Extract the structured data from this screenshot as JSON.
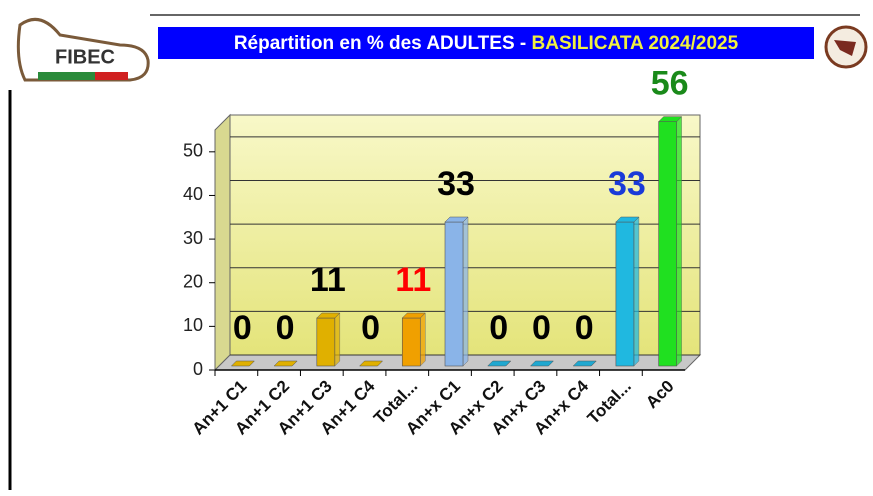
{
  "chart_data": {
    "type": "bar",
    "title": {
      "prefix": "Répartition en % des ADULTES -",
      "highlight": "BASILICATA 2024/2025"
    },
    "logo": "FIBEC",
    "categories": [
      "An+1 C1",
      "An+1 C2",
      "An+1 C3",
      "An+1 C4",
      "Total...",
      "An+x C1",
      "An+x C2",
      "An+x C3",
      "An+x C4",
      "Total...",
      "Ac0"
    ],
    "values": [
      0,
      0,
      11,
      0,
      11,
      33,
      0,
      0,
      0,
      33,
      56
    ],
    "colors": [
      "#e0b000",
      "#e0b000",
      "#e0b000",
      "#e0b000",
      "#f0a000",
      "#8ab4e8",
      "#20a8d0",
      "#20a8d0",
      "#20a8d0",
      "#20b8e0",
      "#20e020"
    ],
    "label_colors": [
      "#000000",
      "#000000",
      "#000000",
      "#000000",
      "#ff0000",
      "#000000",
      "#000000",
      "#000000",
      "#000000",
      "#1a3ad8",
      "#1a8a1a"
    ],
    "ylim": [
      0,
      55
    ],
    "yticks": [
      0,
      10,
      20,
      30,
      40,
      50
    ],
    "grid": true
  }
}
